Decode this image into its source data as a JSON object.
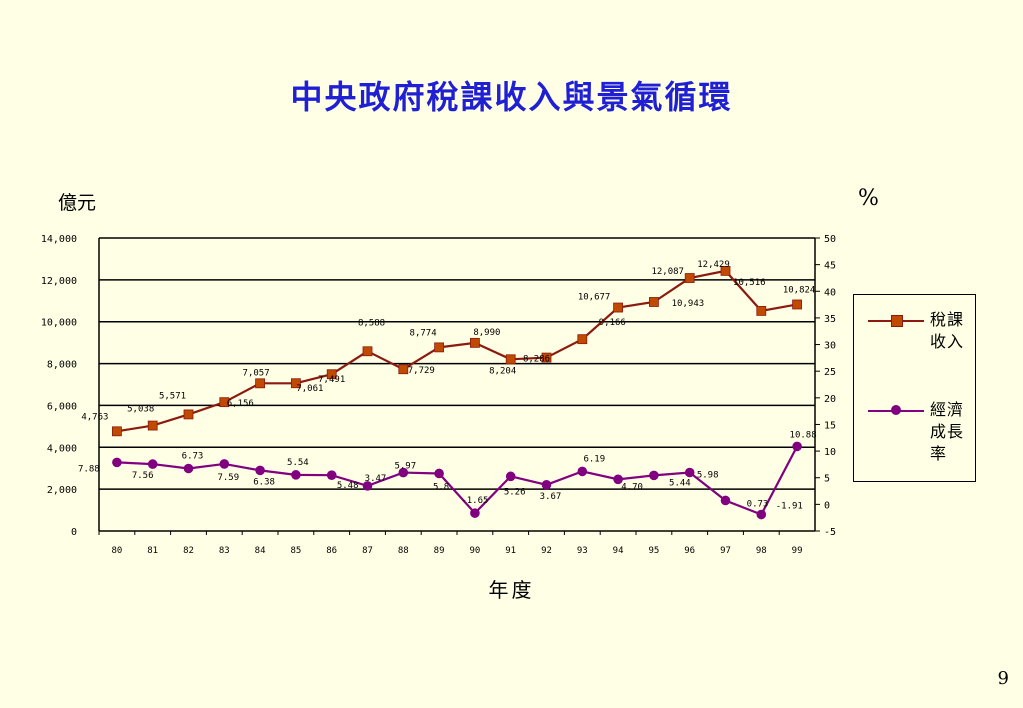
{
  "title": "中央政府稅課收入與景氣循環",
  "left_unit": "億元",
  "right_unit": "%",
  "page_number": "9",
  "legend": {
    "tax_label": "稅課收入",
    "growth_label": "經濟成長率"
  },
  "colors": {
    "title": "#1F1FD6",
    "tax": "#8B1A10",
    "tax_marker": "#C04A00",
    "growth": "#800080",
    "background": "#FFFFE5"
  },
  "chart_data": {
    "type": "line",
    "xlabel": "年度",
    "categories": [
      "80",
      "81",
      "82",
      "83",
      "84",
      "85",
      "86",
      "87",
      "88",
      "89",
      "90",
      "91",
      "92",
      "93",
      "94",
      "95",
      "96",
      "97",
      "98",
      "99"
    ],
    "y_left": {
      "label": "億元",
      "ylim": [
        0,
        14000
      ],
      "ticks": [
        "0",
        "2,000",
        "4,000",
        "6,000",
        "8,000",
        "10,000",
        "12,000",
        "14,000"
      ]
    },
    "y_right": {
      "label": "%",
      "ylim": [
        -5,
        50
      ],
      "ticks": [
        "-5",
        "0",
        "5",
        "10",
        "15",
        "20",
        "25",
        "30",
        "35",
        "40",
        "45",
        "50"
      ]
    },
    "gridlines": "horizontal at left-axis ticks",
    "legend_position": "right",
    "series": [
      {
        "name": "稅課收入",
        "axis": "left",
        "marker": "square",
        "values": [
          4763,
          5038,
          5571,
          6156,
          7057,
          7061,
          7491,
          8588,
          7729,
          8774,
          8990,
          8204,
          8286,
          9166,
          10677,
          10943,
          12087,
          12429,
          10516,
          10824
        ],
        "labels": [
          "4,763",
          "5,038",
          "5,571",
          "6,156",
          "7,057",
          "7,061",
          "7,491",
          "8,588",
          "7,729",
          "8,774",
          "8,990",
          "8,204",
          "8,286",
          "9,166",
          "10,677",
          "10,943",
          "12,087",
          "12,429",
          "10,516",
          "10,824"
        ]
      },
      {
        "name": "經濟成長率",
        "axis": "right",
        "marker": "circle",
        "values": [
          7.88,
          7.56,
          6.73,
          7.59,
          6.38,
          5.54,
          5.48,
          3.47,
          5.97,
          5.8,
          -1.65,
          5.26,
          3.67,
          6.19,
          4.7,
          5.44,
          5.98,
          0.73,
          -1.91,
          10.88
        ],
        "labels": [
          "7.88",
          "7.56",
          "6.73",
          "7.59",
          "6.38",
          "5.54",
          "5.48",
          "3.47",
          "5.97",
          "5.8",
          "-1.65",
          "5.26",
          "3.67",
          "6.19",
          "4.70",
          "5.44",
          "5.98",
          "0.73",
          "-1.91",
          "10.88"
        ]
      }
    ]
  }
}
